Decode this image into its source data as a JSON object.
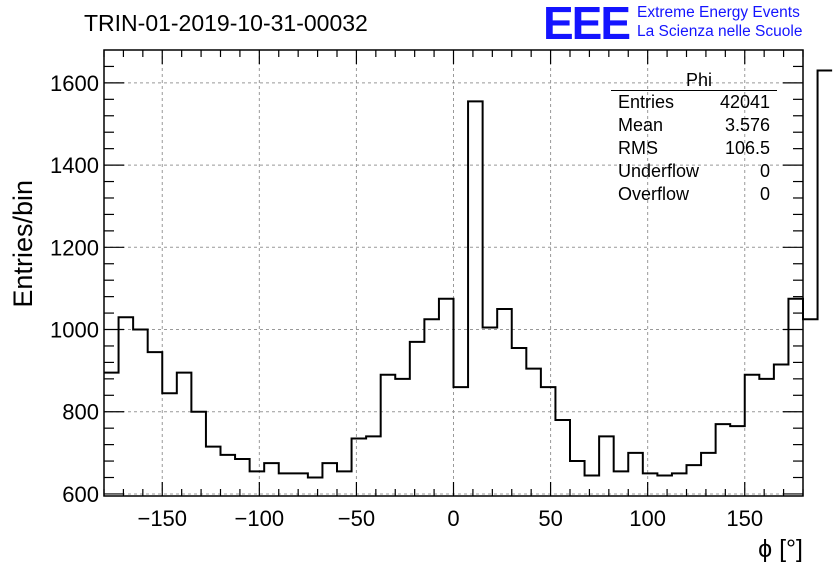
{
  "header": {
    "title": "TRIN-01-2019-10-31-00032",
    "logo": "EEE",
    "logo_line1": "Extreme Energy Events",
    "logo_line2": "La Scienza nelle Scuole"
  },
  "stats_box": {
    "name": "Phi",
    "rows": [
      {
        "label": "Entries",
        "value": "42041"
      },
      {
        "label": "Mean",
        "value": "3.576"
      },
      {
        "label": "RMS",
        "value": "106.5"
      },
      {
        "label": "Underflow",
        "value": "0"
      },
      {
        "label": "Overflow",
        "value": "0"
      }
    ]
  },
  "colors": {
    "line": "#000000",
    "grid": "#999999",
    "logo": "#1414ff"
  },
  "chart_data": {
    "type": "bar",
    "title": "TRIN-01-2019-10-31-00032",
    "xlabel": "ϕ [°]",
    "ylabel": "Entries/bin",
    "xlim": [
      -180,
      180
    ],
    "ylim": [
      595,
      1680
    ],
    "bin_width": 7.5,
    "x_ticks": [
      -150,
      -100,
      -50,
      0,
      50,
      100,
      150
    ],
    "x_tick_labels": [
      "−150",
      "−100",
      "−50",
      "0",
      "50",
      "100",
      "150"
    ],
    "y_ticks": [
      600,
      800,
      1000,
      1200,
      1400,
      1600
    ],
    "y_tick_labels": [
      "600",
      "800",
      "1000",
      "1200",
      "1400",
      "1600"
    ],
    "grid": true,
    "values": [
      895,
      1030,
      1000,
      945,
      845,
      895,
      800,
      715,
      695,
      685,
      655,
      675,
      650,
      650,
      640,
      675,
      655,
      735,
      740,
      890,
      880,
      970,
      1025,
      1075,
      860,
      1555,
      1005,
      1050,
      955,
      905,
      860,
      780,
      680,
      645,
      740,
      655,
      700,
      650,
      645,
      650,
      670,
      700,
      770,
      765,
      890,
      880,
      915,
      1075,
      1025,
      1630
    ]
  }
}
